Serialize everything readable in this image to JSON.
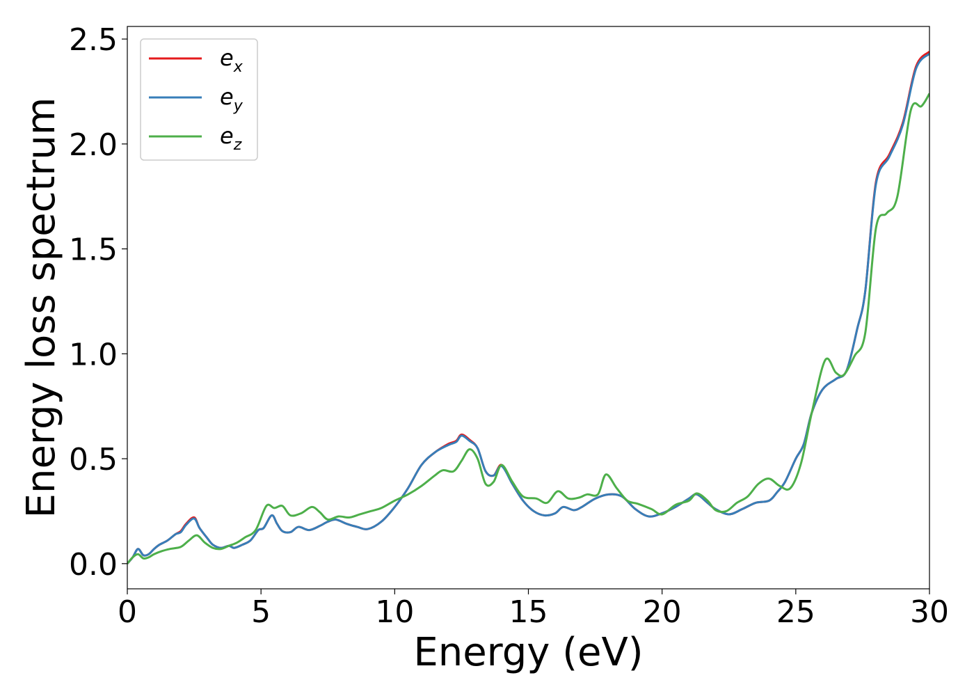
{
  "chart_data": {
    "type": "line",
    "title": "",
    "xlabel": "Energy (eV)",
    "ylabel": "Energy loss spectrum",
    "xlim": [
      0,
      30
    ],
    "ylim": [
      -0.12,
      2.56
    ],
    "xticks": [
      0,
      5,
      10,
      15,
      20,
      25,
      30
    ],
    "xtick_labels": [
      "0",
      "5",
      "10",
      "15",
      "20",
      "25",
      "30"
    ],
    "yticks": [
      0.0,
      0.5,
      1.0,
      1.5,
      2.0,
      2.5
    ],
    "ytick_labels": [
      "0.0",
      "0.5",
      "1.0",
      "1.5",
      "2.0",
      "2.5"
    ],
    "grid": false,
    "legend_position": "top-left",
    "series": [
      {
        "name": "e_x",
        "label_base": "e",
        "label_sub": "x",
        "color": "#e41a1c",
        "points": [
          [
            0,
            0
          ],
          [
            0.2,
            0.03
          ],
          [
            0.4,
            0.07
          ],
          [
            0.6,
            0.04
          ],
          [
            0.8,
            0.045
          ],
          [
            1.0,
            0.07
          ],
          [
            1.2,
            0.09
          ],
          [
            1.5,
            0.11
          ],
          [
            1.8,
            0.14
          ],
          [
            2.0,
            0.155
          ],
          [
            2.2,
            0.19
          ],
          [
            2.5,
            0.22
          ],
          [
            2.7,
            0.17
          ],
          [
            3.0,
            0.12
          ],
          [
            3.2,
            0.09
          ],
          [
            3.5,
            0.075
          ],
          [
            3.8,
            0.085
          ],
          [
            4.0,
            0.075
          ],
          [
            4.3,
            0.09
          ],
          [
            4.6,
            0.11
          ],
          [
            4.9,
            0.16
          ],
          [
            5.1,
            0.17
          ],
          [
            5.4,
            0.23
          ],
          [
            5.6,
            0.19
          ],
          [
            5.8,
            0.155
          ],
          [
            6.1,
            0.15
          ],
          [
            6.4,
            0.175
          ],
          [
            6.8,
            0.16
          ],
          [
            7.2,
            0.18
          ],
          [
            7.5,
            0.2
          ],
          [
            7.8,
            0.21
          ],
          [
            8.2,
            0.19
          ],
          [
            8.6,
            0.175
          ],
          [
            9.0,
            0.165
          ],
          [
            9.5,
            0.2
          ],
          [
            10.0,
            0.27
          ],
          [
            10.5,
            0.36
          ],
          [
            11.0,
            0.47
          ],
          [
            11.5,
            0.53
          ],
          [
            12.0,
            0.57
          ],
          [
            12.3,
            0.585
          ],
          [
            12.5,
            0.615
          ],
          [
            12.8,
            0.59
          ],
          [
            13.1,
            0.55
          ],
          [
            13.4,
            0.44
          ],
          [
            13.7,
            0.42
          ],
          [
            14.0,
            0.47
          ],
          [
            14.4,
            0.38
          ],
          [
            14.8,
            0.3
          ],
          [
            15.2,
            0.25
          ],
          [
            15.6,
            0.23
          ],
          [
            16.0,
            0.24
          ],
          [
            16.3,
            0.27
          ],
          [
            16.7,
            0.255
          ],
          [
            17.0,
            0.27
          ],
          [
            17.5,
            0.31
          ],
          [
            18.0,
            0.33
          ],
          [
            18.5,
            0.32
          ],
          [
            19.0,
            0.26
          ],
          [
            19.5,
            0.225
          ],
          [
            20.0,
            0.24
          ],
          [
            20.5,
            0.27
          ],
          [
            21.0,
            0.31
          ],
          [
            21.3,
            0.33
          ],
          [
            21.7,
            0.29
          ],
          [
            22.0,
            0.26
          ],
          [
            22.5,
            0.235
          ],
          [
            23.0,
            0.26
          ],
          [
            23.5,
            0.29
          ],
          [
            24.0,
            0.3
          ],
          [
            24.3,
            0.34
          ],
          [
            24.6,
            0.39
          ],
          [
            25.0,
            0.5
          ],
          [
            25.3,
            0.57
          ],
          [
            25.6,
            0.72
          ],
          [
            26.0,
            0.83
          ],
          [
            26.5,
            0.88
          ],
          [
            26.9,
            0.92
          ],
          [
            27.3,
            1.12
          ],
          [
            27.6,
            1.3
          ],
          [
            28.0,
            1.82
          ],
          [
            28.5,
            1.95
          ],
          [
            29.0,
            2.1
          ],
          [
            29.5,
            2.37
          ],
          [
            30.0,
            2.44
          ]
        ]
      },
      {
        "name": "e_y",
        "label_base": "e",
        "label_sub": "y",
        "color": "#377eb8",
        "points": [
          [
            0,
            0
          ],
          [
            0.2,
            0.03
          ],
          [
            0.4,
            0.07
          ],
          [
            0.6,
            0.04
          ],
          [
            0.8,
            0.045
          ],
          [
            1.0,
            0.07
          ],
          [
            1.2,
            0.09
          ],
          [
            1.5,
            0.11
          ],
          [
            1.8,
            0.14
          ],
          [
            2.0,
            0.15
          ],
          [
            2.2,
            0.185
          ],
          [
            2.5,
            0.215
          ],
          [
            2.7,
            0.17
          ],
          [
            3.0,
            0.12
          ],
          [
            3.2,
            0.09
          ],
          [
            3.5,
            0.075
          ],
          [
            3.8,
            0.085
          ],
          [
            4.0,
            0.075
          ],
          [
            4.3,
            0.09
          ],
          [
            4.6,
            0.11
          ],
          [
            4.9,
            0.16
          ],
          [
            5.1,
            0.17
          ],
          [
            5.4,
            0.23
          ],
          [
            5.6,
            0.19
          ],
          [
            5.8,
            0.155
          ],
          [
            6.1,
            0.15
          ],
          [
            6.4,
            0.175
          ],
          [
            6.8,
            0.16
          ],
          [
            7.2,
            0.18
          ],
          [
            7.5,
            0.2
          ],
          [
            7.8,
            0.21
          ],
          [
            8.2,
            0.19
          ],
          [
            8.6,
            0.175
          ],
          [
            9.0,
            0.165
          ],
          [
            9.5,
            0.2
          ],
          [
            10.0,
            0.27
          ],
          [
            10.5,
            0.36
          ],
          [
            11.0,
            0.47
          ],
          [
            11.5,
            0.53
          ],
          [
            12.0,
            0.565
          ],
          [
            12.3,
            0.58
          ],
          [
            12.5,
            0.61
          ],
          [
            12.8,
            0.585
          ],
          [
            13.1,
            0.55
          ],
          [
            13.4,
            0.44
          ],
          [
            13.7,
            0.42
          ],
          [
            14.0,
            0.465
          ],
          [
            14.4,
            0.38
          ],
          [
            14.8,
            0.3
          ],
          [
            15.2,
            0.25
          ],
          [
            15.6,
            0.23
          ],
          [
            16.0,
            0.24
          ],
          [
            16.3,
            0.27
          ],
          [
            16.7,
            0.255
          ],
          [
            17.0,
            0.27
          ],
          [
            17.5,
            0.31
          ],
          [
            18.0,
            0.33
          ],
          [
            18.5,
            0.32
          ],
          [
            19.0,
            0.26
          ],
          [
            19.5,
            0.225
          ],
          [
            20.0,
            0.24
          ],
          [
            20.5,
            0.27
          ],
          [
            21.0,
            0.31
          ],
          [
            21.3,
            0.33
          ],
          [
            21.7,
            0.29
          ],
          [
            22.0,
            0.26
          ],
          [
            22.5,
            0.235
          ],
          [
            23.0,
            0.26
          ],
          [
            23.5,
            0.29
          ],
          [
            24.0,
            0.3
          ],
          [
            24.3,
            0.34
          ],
          [
            24.6,
            0.39
          ],
          [
            25.0,
            0.5
          ],
          [
            25.3,
            0.57
          ],
          [
            25.6,
            0.72
          ],
          [
            26.0,
            0.83
          ],
          [
            26.5,
            0.88
          ],
          [
            26.9,
            0.92
          ],
          [
            27.3,
            1.12
          ],
          [
            27.6,
            1.3
          ],
          [
            28.0,
            1.81
          ],
          [
            28.5,
            1.94
          ],
          [
            29.0,
            2.09
          ],
          [
            29.5,
            2.36
          ],
          [
            30.0,
            2.43
          ]
        ]
      },
      {
        "name": "e_z",
        "label_base": "e",
        "label_sub": "z",
        "color": "#4daf4a",
        "points": [
          [
            0,
            0
          ],
          [
            0.2,
            0.03
          ],
          [
            0.4,
            0.045
          ],
          [
            0.6,
            0.025
          ],
          [
            0.8,
            0.03
          ],
          [
            1.0,
            0.045
          ],
          [
            1.3,
            0.06
          ],
          [
            1.6,
            0.07
          ],
          [
            2.0,
            0.08
          ],
          [
            2.3,
            0.11
          ],
          [
            2.6,
            0.135
          ],
          [
            2.9,
            0.1
          ],
          [
            3.2,
            0.075
          ],
          [
            3.5,
            0.07
          ],
          [
            3.8,
            0.085
          ],
          [
            4.1,
            0.1
          ],
          [
            4.4,
            0.125
          ],
          [
            4.8,
            0.16
          ],
          [
            5.2,
            0.275
          ],
          [
            5.5,
            0.265
          ],
          [
            5.8,
            0.275
          ],
          [
            6.1,
            0.23
          ],
          [
            6.5,
            0.24
          ],
          [
            6.9,
            0.27
          ],
          [
            7.2,
            0.245
          ],
          [
            7.5,
            0.21
          ],
          [
            7.9,
            0.225
          ],
          [
            8.3,
            0.22
          ],
          [
            8.7,
            0.235
          ],
          [
            9.1,
            0.25
          ],
          [
            9.5,
            0.265
          ],
          [
            10.0,
            0.3
          ],
          [
            10.5,
            0.33
          ],
          [
            11.0,
            0.37
          ],
          [
            11.5,
            0.42
          ],
          [
            11.8,
            0.445
          ],
          [
            12.2,
            0.44
          ],
          [
            12.5,
            0.49
          ],
          [
            12.8,
            0.545
          ],
          [
            13.1,
            0.5
          ],
          [
            13.4,
            0.38
          ],
          [
            13.7,
            0.39
          ],
          [
            14.0,
            0.47
          ],
          [
            14.4,
            0.39
          ],
          [
            14.8,
            0.32
          ],
          [
            15.3,
            0.31
          ],
          [
            15.7,
            0.29
          ],
          [
            16.1,
            0.345
          ],
          [
            16.5,
            0.31
          ],
          [
            16.9,
            0.315
          ],
          [
            17.2,
            0.33
          ],
          [
            17.6,
            0.33
          ],
          [
            17.9,
            0.425
          ],
          [
            18.3,
            0.36
          ],
          [
            18.7,
            0.3
          ],
          [
            19.1,
            0.285
          ],
          [
            19.6,
            0.26
          ],
          [
            20.0,
            0.235
          ],
          [
            20.5,
            0.28
          ],
          [
            21.0,
            0.3
          ],
          [
            21.3,
            0.335
          ],
          [
            21.7,
            0.3
          ],
          [
            22.0,
            0.255
          ],
          [
            22.4,
            0.25
          ],
          [
            22.8,
            0.29
          ],
          [
            23.2,
            0.32
          ],
          [
            23.6,
            0.38
          ],
          [
            24.0,
            0.405
          ],
          [
            24.4,
            0.37
          ],
          [
            24.8,
            0.36
          ],
          [
            25.2,
            0.48
          ],
          [
            25.6,
            0.72
          ],
          [
            26.1,
            0.97
          ],
          [
            26.5,
            0.91
          ],
          [
            26.8,
            0.9
          ],
          [
            27.2,
            0.99
          ],
          [
            27.6,
            1.1
          ],
          [
            28.0,
            1.6
          ],
          [
            28.4,
            1.67
          ],
          [
            28.8,
            1.75
          ],
          [
            29.3,
            2.16
          ],
          [
            29.7,
            2.18
          ],
          [
            30.0,
            2.24
          ]
        ]
      }
    ]
  }
}
